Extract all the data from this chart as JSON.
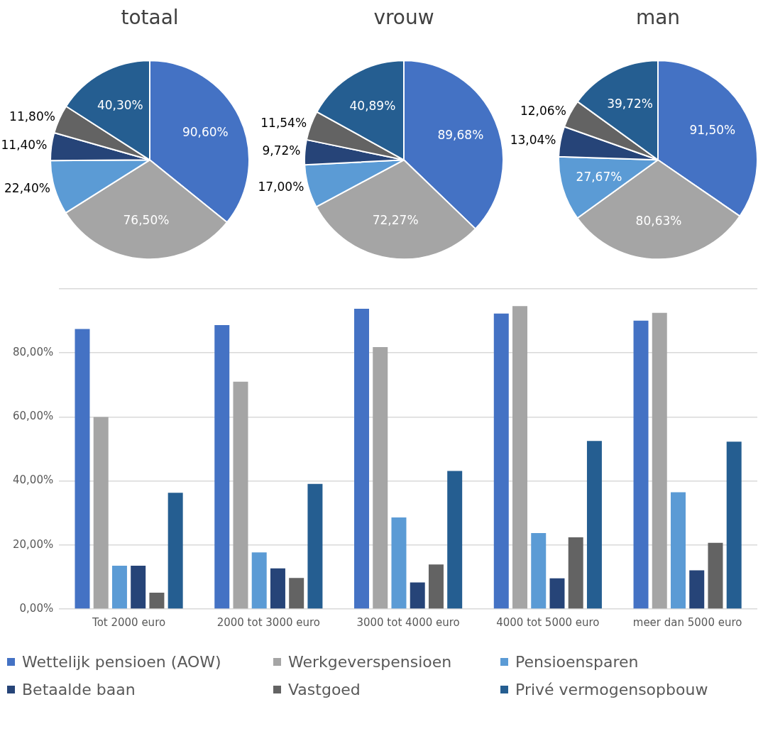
{
  "chart_data": [
    {
      "type": "pie",
      "title": "totaal",
      "categories": [
        null,
        null,
        null,
        null,
        null,
        null
      ],
      "values": [
        90.6,
        76.5,
        22.4,
        11.4,
        11.8,
        40.3
      ],
      "value_labels": [
        "90,60%",
        "76,50%",
        "22,40%",
        "11,40%",
        "11,80%",
        "40,30%"
      ],
      "colors": [
        "#4472c4",
        "#a5a5a5",
        "#5b9bd5",
        "#264478",
        "#636363",
        "#255e91"
      ]
    },
    {
      "type": "pie",
      "title": "vrouw",
      "categories": [
        null,
        null,
        null,
        null,
        null,
        null
      ],
      "values": [
        89.68,
        72.27,
        17.0,
        9.72,
        11.54,
        40.89
      ],
      "value_labels": [
        "89,68%",
        "72,27%",
        "17,00%",
        "9,72%",
        "11,54%",
        "40,89%"
      ],
      "colors": [
        "#4472c4",
        "#a5a5a5",
        "#5b9bd5",
        "#264478",
        "#636363",
        "#255e91"
      ]
    },
    {
      "type": "pie",
      "title": "man",
      "categories": [
        null,
        null,
        null,
        null,
        null,
        null
      ],
      "values": [
        91.5,
        80.63,
        27.67,
        13.04,
        12.06,
        39.72
      ],
      "value_labels": [
        "91,50%",
        "80,63%",
        "27,67%",
        "13,04%",
        "12,06%",
        "39,72%"
      ],
      "colors": [
        "#4472c4",
        "#a5a5a5",
        "#5b9bd5",
        "#264478",
        "#636363",
        "#255e91"
      ]
    },
    {
      "type": "bar",
      "categories": [
        "Tot 2000 euro",
        "2000 tot 3000 euro",
        "3000 tot 4000 euro",
        "4000 tot 5000 euro",
        "meer dan 5000 euro"
      ],
      "series": [
        {
          "name": "Wettelijk pensioen (AOW)",
          "color": "#4472c4",
          "values": [
            87.5,
            88.7,
            93.8,
            92.3,
            90.1
          ]
        },
        {
          "name": "Werkgeverspensioen",
          "color": "#a5a5a5",
          "values": [
            60.0,
            71.0,
            81.8,
            94.6,
            92.5
          ]
        },
        {
          "name": "Pensioensparen",
          "color": "#5b9bd5",
          "values": [
            13.5,
            17.7,
            28.6,
            23.7,
            36.5
          ]
        },
        {
          "name": "Betaalde baan",
          "color": "#264478",
          "values": [
            13.5,
            12.7,
            8.3,
            9.6,
            12.1
          ]
        },
        {
          "name": "Vastgoed",
          "color": "#636363",
          "values": [
            5.1,
            9.7,
            13.9,
            22.4,
            20.7
          ]
        },
        {
          "name": "Privé vermogensopbouw",
          "color": "#255e91",
          "values": [
            36.3,
            39.1,
            43.1,
            52.5,
            52.3
          ]
        }
      ],
      "ylim": [
        0,
        100
      ],
      "yticks": [
        {
          "value": 0,
          "label": "0,00%"
        },
        {
          "value": 20,
          "label": "20,00%"
        },
        {
          "value": 40,
          "label": "40,00%"
        },
        {
          "value": 60,
          "label": "60,00%"
        },
        {
          "value": 80,
          "label": "80,00%"
        },
        {
          "value": 100,
          "label": null
        }
      ],
      "grid": "y",
      "legend": "bottom"
    }
  ]
}
